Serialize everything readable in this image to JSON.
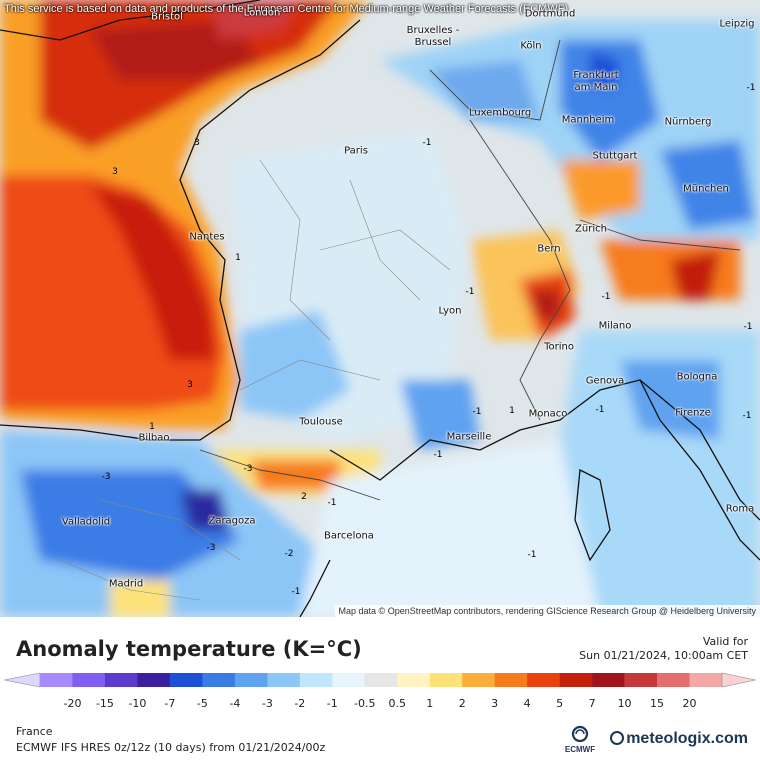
{
  "map": {
    "notice": "This service is based on data and products of the European Centre for Medium-range Weather Forecasts (ECMWF)",
    "attribution": "Map data © OpenStreetMap contributors, rendering GIScience Research Group @ Heidelberg University",
    "cities": [
      {
        "name": "Bristol",
        "warm": true
      },
      {
        "name": "London",
        "warm": true
      },
      {
        "name": "Bruxelles - Brussel",
        "warm": false
      },
      {
        "name": "Dortmund",
        "warm": false
      },
      {
        "name": "Leipzig",
        "warm": false
      },
      {
        "name": "Köln",
        "warm": false
      },
      {
        "name": "Frankfurt am Main",
        "warm": false
      },
      {
        "name": "Luxembourg",
        "warm": false
      },
      {
        "name": "Mannheim",
        "warm": false
      },
      {
        "name": "Nürnberg",
        "warm": false
      },
      {
        "name": "Paris",
        "warm": false
      },
      {
        "name": "Stuttgart",
        "warm": false
      },
      {
        "name": "München",
        "warm": false
      },
      {
        "name": "Nantes",
        "warm": false
      },
      {
        "name": "Zürich",
        "warm": false
      },
      {
        "name": "Bern",
        "warm": false
      },
      {
        "name": "Lyon",
        "warm": false
      },
      {
        "name": "Milano",
        "warm": false
      },
      {
        "name": "Torino",
        "warm": false
      },
      {
        "name": "Genova",
        "warm": false
      },
      {
        "name": "Bologna",
        "warm": false
      },
      {
        "name": "Firenze",
        "warm": false
      },
      {
        "name": "Monaco",
        "warm": false
      },
      {
        "name": "Marseille",
        "warm": false
      },
      {
        "name": "Toulouse",
        "warm": false
      },
      {
        "name": "Bilbao",
        "warm": false
      },
      {
        "name": "Valladolid",
        "warm": false
      },
      {
        "name": "Zaragoza",
        "warm": false
      },
      {
        "name": "Barcelona",
        "warm": false
      },
      {
        "name": "Roma",
        "warm": false
      },
      {
        "name": "Madrid",
        "warm": false
      }
    ],
    "contour_labels": [
      "3",
      "3",
      "3",
      "1",
      "1",
      "-1",
      "-1",
      "-1",
      "-1",
      "-1",
      "-1",
      "-1",
      "-3",
      "-3",
      "-3",
      "2",
      "-1",
      "-2",
      "-1",
      "1",
      "-1",
      "-1",
      "-1"
    ]
  },
  "legend": {
    "title": "Anomaly temperature (K=°C)",
    "valid_label": "Valid for",
    "valid_date": "Sun 01/21/2024, 10:00am CET",
    "ticks": [
      "-20",
      "-15",
      "-10",
      "-7",
      "-5",
      "-4",
      "-3",
      "-2",
      "-1",
      "-0.5",
      "0.5",
      "1",
      "2",
      "3",
      "4",
      "5",
      "7",
      "10",
      "15",
      "20"
    ],
    "colors": [
      "#a48cff",
      "#7f5ef0",
      "#5a3ccf",
      "#3a1f9e",
      "#1f4fd6",
      "#3a7be6",
      "#5fa2f0",
      "#8cc6f7",
      "#bfe6fb",
      "#e8f4fb",
      "#e6e6e6",
      "#fff3c4",
      "#fde27a",
      "#fdae3a",
      "#f77b1c",
      "#e8420e",
      "#c21f0c",
      "#a2141d",
      "#c6373a",
      "#e46e6e",
      "#f3a8a8"
    ],
    "left_end_color": "#e0d7ff",
    "right_end_color": "#fad2d2"
  },
  "footer": {
    "region": "France",
    "model": "ECMWF IFS HRES 0z/12z (10 days) from 01/21/2024/00z",
    "ecmwf_text": "ECMWF",
    "brand": "meteologix.com"
  }
}
